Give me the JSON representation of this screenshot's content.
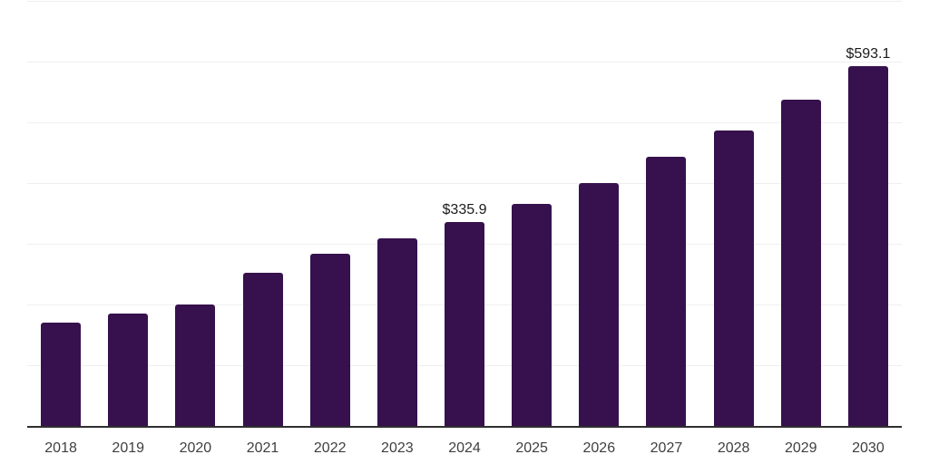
{
  "chart_data": {
    "type": "bar",
    "title": "",
    "xlabel": "",
    "ylabel": "",
    "categories": [
      "2018",
      "2019",
      "2020",
      "2021",
      "2022",
      "2023",
      "2024",
      "2025",
      "2026",
      "2027",
      "2028",
      "2029",
      "2030"
    ],
    "values": [
      170.0,
      185.0,
      199.9,
      252.1,
      283.4,
      308.7,
      335.9,
      365.4,
      399.7,
      442.9,
      486.2,
      536.9,
      593.1
    ],
    "data_labels": [
      null,
      null,
      null,
      null,
      null,
      null,
      "$335.9",
      null,
      null,
      null,
      null,
      null,
      "$593.1"
    ],
    "ylim": [
      0,
      700
    ],
    "grid_step": 100,
    "grid": true,
    "legend": false,
    "y_axis_labels_visible": false,
    "colors": {
      "bar": "#36114d",
      "gridline": "#efefef",
      "axis_line": "#2f2f2f",
      "tick_label": "#3f3f3f",
      "data_label": "#1b1b1b",
      "background": "#ffffff"
    }
  }
}
